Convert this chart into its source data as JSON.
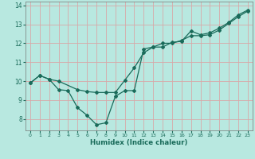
{
  "xlabel": "Humidex (Indice chaleur)",
  "background_color": "#b8e8e0",
  "grid_color": "#d8a8a8",
  "line_color": "#1a6b5a",
  "xlim": [
    -0.5,
    23.5
  ],
  "ylim": [
    7.4,
    14.2
  ],
  "xticks": [
    0,
    1,
    2,
    3,
    4,
    5,
    6,
    7,
    8,
    9,
    10,
    11,
    12,
    13,
    14,
    15,
    16,
    17,
    18,
    19,
    20,
    21,
    22,
    23
  ],
  "yticks": [
    8,
    9,
    10,
    11,
    12,
    13,
    14
  ],
  "series1_x": [
    0,
    1,
    2,
    3,
    5,
    6,
    7,
    8,
    9,
    10,
    11,
    12,
    13,
    14,
    15,
    16,
    17,
    18,
    19,
    20,
    21,
    22,
    23
  ],
  "series1_y": [
    9.9,
    10.3,
    10.1,
    10.0,
    9.55,
    9.45,
    9.4,
    9.4,
    9.4,
    10.05,
    10.7,
    11.5,
    11.8,
    12.0,
    12.0,
    12.15,
    12.4,
    12.4,
    12.45,
    12.7,
    13.05,
    13.4,
    13.7
  ],
  "series2_x": [
    0,
    1,
    2,
    3,
    4,
    5,
    6,
    7,
    8,
    9,
    10,
    11,
    12,
    13,
    14,
    15,
    16,
    17,
    18,
    19,
    20,
    21,
    22,
    23
  ],
  "series2_y": [
    9.9,
    10.3,
    10.1,
    9.55,
    9.5,
    8.6,
    8.2,
    7.7,
    7.8,
    9.2,
    9.5,
    9.5,
    11.7,
    11.8,
    11.8,
    12.05,
    12.1,
    12.65,
    12.45,
    12.55,
    12.8,
    13.1,
    13.5,
    13.75
  ],
  "marker": "D",
  "markersize": 2.0,
  "linewidth": 0.9
}
